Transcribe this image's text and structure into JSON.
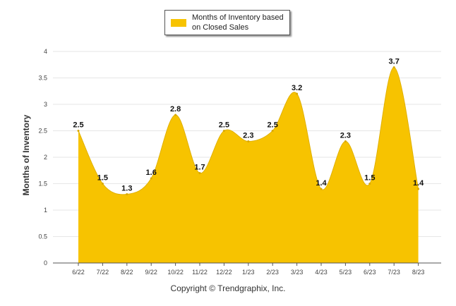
{
  "colors": {
    "accent": "#f7c300",
    "grid": "#e6e6e6",
    "axis": "#555555"
  },
  "chart_data": {
    "type": "area",
    "categories": [
      "6/22",
      "7/22",
      "8/22",
      "9/22",
      "10/22",
      "11/22",
      "12/22",
      "1/23",
      "2/23",
      "3/23",
      "4/23",
      "5/23",
      "6/23",
      "7/23",
      "8/23"
    ],
    "series": [
      {
        "name": "Months of Inventory based on Closed Sales",
        "values": [
          2.5,
          1.5,
          1.3,
          1.6,
          2.8,
          1.7,
          2.5,
          2.3,
          2.5,
          3.2,
          1.4,
          2.3,
          1.5,
          3.7,
          1.4
        ]
      }
    ],
    "ylabel": "Months of Inventory",
    "ylim": [
      0,
      4
    ],
    "yticks": [
      "0",
      "0.5",
      "1",
      "1.5",
      "2",
      "2.5",
      "3",
      "3.5",
      "4"
    ],
    "grid": true,
    "legend_position": "top-center",
    "data_labels": true
  },
  "legend": {
    "label": "Months of Inventory based on Closed Sales"
  },
  "footer": {
    "copyright": "Copyright © Trendgraphix, Inc."
  }
}
